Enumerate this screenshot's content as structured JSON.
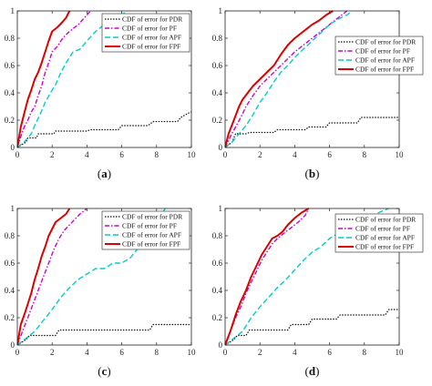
{
  "chart_data": [
    {
      "type": "line",
      "caption": "(a)",
      "xlim": [
        0,
        10
      ],
      "ylim": [
        0,
        1
      ],
      "xticks": [
        "0",
        "2",
        "4",
        "6",
        "8",
        "10"
      ],
      "yticks": [
        "0",
        "0.2",
        "0.4",
        "0.6",
        "0.8",
        "1"
      ],
      "legend_position": "right-middle",
      "series": [
        {
          "name": "CDF of error for PDR",
          "color": "#111111",
          "dash": "dotted",
          "x": [
            0,
            0.5,
            0.6,
            1.1,
            1.2,
            2.1,
            2.2,
            4.0,
            4.2,
            5.8,
            6.0,
            7.5,
            7.8,
            9.2,
            9.4,
            9.8,
            10
          ],
          "y": [
            0,
            0.04,
            0.07,
            0.07,
            0.1,
            0.1,
            0.12,
            0.12,
            0.13,
            0.13,
            0.16,
            0.16,
            0.19,
            0.19,
            0.22,
            0.25,
            0.26
          ]
        },
        {
          "name": "CDF of error for PF",
          "color": "#cc00cc",
          "dash": "dashdot",
          "x": [
            0,
            0.2,
            0.4,
            0.6,
            0.8,
            1.0,
            1.2,
            1.4,
            1.6,
            1.8,
            2.0,
            2.3,
            2.6,
            3.0,
            3.5,
            4.0,
            4.2
          ],
          "y": [
            0,
            0.08,
            0.15,
            0.2,
            0.26,
            0.3,
            0.38,
            0.45,
            0.55,
            0.62,
            0.7,
            0.74,
            0.8,
            0.85,
            0.9,
            0.97,
            1.0
          ]
        },
        {
          "name": "CDF of error for APF",
          "color": "#00cccc",
          "dash": "dashed",
          "x": [
            0,
            0.4,
            0.8,
            1.0,
            1.3,
            1.6,
            1.9,
            2.2,
            2.5,
            2.8,
            3.2,
            3.6,
            4.0,
            4.5,
            5.0,
            5.5,
            6.0,
            6.3
          ],
          "y": [
            0,
            0.04,
            0.1,
            0.16,
            0.24,
            0.33,
            0.4,
            0.46,
            0.55,
            0.62,
            0.7,
            0.72,
            0.78,
            0.85,
            0.9,
            0.93,
            0.97,
            1.0
          ]
        },
        {
          "name": "CDF of error for FPF",
          "color": "#dd0000",
          "dash": "solid",
          "x": [
            0,
            0.2,
            0.4,
            0.6,
            0.8,
            1.0,
            1.2,
            1.4,
            1.6,
            1.8,
            2.0,
            2.3,
            2.6,
            2.8,
            3.0
          ],
          "y": [
            0,
            0.15,
            0.25,
            0.35,
            0.42,
            0.5,
            0.55,
            0.62,
            0.7,
            0.78,
            0.85,
            0.88,
            0.92,
            0.95,
            1.0
          ]
        }
      ]
    },
    {
      "type": "line",
      "caption": "(b)",
      "xlim": [
        0,
        10
      ],
      "ylim": [
        0,
        1
      ],
      "xticks": [
        "0",
        "2",
        "4",
        "6",
        "8",
        "10"
      ],
      "yticks": [
        "0",
        "0.2",
        "0.4",
        "0.6",
        "0.8",
        "1"
      ],
      "legend_position": "right-middle",
      "series": [
        {
          "name": "CDF of error for PDR",
          "color": "#111111",
          "dash": "dotted",
          "x": [
            0,
            0.4,
            0.6,
            1.2,
            1.4,
            2.8,
            3.0,
            4.6,
            4.8,
            5.8,
            6.0,
            7.6,
            7.8,
            10
          ],
          "y": [
            0,
            0.04,
            0.1,
            0.1,
            0.11,
            0.11,
            0.13,
            0.13,
            0.15,
            0.15,
            0.18,
            0.18,
            0.22,
            0.22
          ]
        },
        {
          "name": "CDF of error for PF",
          "color": "#cc00cc",
          "dash": "dashdot",
          "x": [
            0,
            0.3,
            0.6,
            0.9,
            1.2,
            1.6,
            2.0,
            2.4,
            2.8,
            3.2,
            3.6,
            4.0,
            4.5,
            5.0,
            5.5,
            6.0,
            6.5,
            7.0
          ],
          "y": [
            0,
            0.08,
            0.15,
            0.22,
            0.3,
            0.38,
            0.45,
            0.5,
            0.55,
            0.6,
            0.65,
            0.7,
            0.75,
            0.8,
            0.85,
            0.9,
            0.95,
            1.0
          ]
        },
        {
          "name": "CDF of error for APF",
          "color": "#00cccc",
          "dash": "dashed",
          "x": [
            0,
            0.4,
            0.8,
            1.2,
            1.6,
            2.0,
            2.4,
            2.8,
            3.2,
            3.6,
            4.0,
            4.5,
            5.0,
            5.5,
            6.0,
            6.5,
            7.0,
            7.3
          ],
          "y": [
            0,
            0.04,
            0.1,
            0.16,
            0.24,
            0.33,
            0.4,
            0.48,
            0.55,
            0.6,
            0.66,
            0.72,
            0.78,
            0.84,
            0.9,
            0.94,
            0.97,
            1.0
          ]
        },
        {
          "name": "CDF of error for FPF",
          "color": "#dd0000",
          "dash": "solid",
          "x": [
            0,
            0.2,
            0.5,
            0.8,
            1.0,
            1.3,
            1.6,
            2.0,
            2.4,
            2.8,
            3.2,
            3.6,
            4.0,
            4.5,
            5.0,
            5.4,
            5.8,
            6.2
          ],
          "y": [
            0,
            0.1,
            0.2,
            0.3,
            0.35,
            0.4,
            0.45,
            0.5,
            0.55,
            0.6,
            0.68,
            0.75,
            0.8,
            0.85,
            0.9,
            0.93,
            0.97,
            1.0
          ]
        }
      ]
    },
    {
      "type": "line",
      "caption": "(c)",
      "xlim": [
        0,
        10
      ],
      "ylim": [
        0,
        1
      ],
      "xticks": [
        "0",
        "2",
        "4",
        "6",
        "8",
        "10"
      ],
      "yticks": [
        "0",
        "0.2",
        "0.4",
        "0.6",
        "0.8",
        "1"
      ],
      "legend_position": "right-middle",
      "series": [
        {
          "name": "CDF of error for PDR",
          "color": "#111111",
          "dash": "dotted",
          "x": [
            0,
            0.5,
            0.7,
            2.2,
            2.4,
            7.6,
            7.8,
            10
          ],
          "y": [
            0,
            0.04,
            0.07,
            0.07,
            0.11,
            0.11,
            0.15,
            0.15
          ]
        },
        {
          "name": "CDF of error for PF",
          "color": "#cc00cc",
          "dash": "dashdot",
          "x": [
            0,
            0.3,
            0.6,
            0.9,
            1.2,
            1.5,
            1.8,
            2.1,
            2.4,
            2.7,
            3.0,
            3.3,
            3.6,
            4.0
          ],
          "y": [
            0,
            0.1,
            0.2,
            0.3,
            0.4,
            0.5,
            0.6,
            0.7,
            0.78,
            0.84,
            0.88,
            0.92,
            0.96,
            1.0
          ]
        },
        {
          "name": "CDF of error for APF",
          "color": "#00cccc",
          "dash": "dashed",
          "x": [
            0,
            0.5,
            1.0,
            1.5,
            2.0,
            2.5,
            3.0,
            3.5,
            4.0,
            4.5,
            5.0,
            5.5,
            6.0,
            6.5,
            7.0,
            7.5,
            8.0,
            8.5
          ],
          "y": [
            0,
            0.05,
            0.1,
            0.18,
            0.26,
            0.35,
            0.42,
            0.48,
            0.52,
            0.56,
            0.56,
            0.6,
            0.6,
            0.64,
            0.72,
            0.8,
            0.9,
            1.0
          ]
        },
        {
          "name": "CDF of error for FPF",
          "color": "#dd0000",
          "dash": "solid",
          "x": [
            0,
            0.2,
            0.4,
            0.6,
            0.8,
            1.0,
            1.2,
            1.4,
            1.6,
            1.8,
            2.0,
            2.2,
            2.5,
            2.8,
            3.0
          ],
          "y": [
            0,
            0.15,
            0.22,
            0.3,
            0.38,
            0.48,
            0.56,
            0.65,
            0.72,
            0.8,
            0.85,
            0.9,
            0.93,
            0.96,
            1.0
          ]
        }
      ]
    },
    {
      "type": "line",
      "caption": "(d)",
      "xlim": [
        0,
        10
      ],
      "ylim": [
        0,
        1
      ],
      "xticks": [
        "0",
        "2",
        "4",
        "6",
        "8",
        "10"
      ],
      "yticks": [
        "0",
        "0.2",
        "0.4",
        "0.6",
        "0.8",
        "1"
      ],
      "legend_position": "top-right",
      "series": [
        {
          "name": "CDF of error for PDR",
          "color": "#111111",
          "dash": "dotted",
          "x": [
            0,
            0.5,
            0.7,
            1.2,
            1.4,
            3.6,
            3.8,
            4.8,
            5.0,
            6.4,
            6.6,
            9.2,
            9.4,
            10
          ],
          "y": [
            0,
            0.04,
            0.07,
            0.07,
            0.11,
            0.11,
            0.15,
            0.15,
            0.19,
            0.19,
            0.22,
            0.22,
            0.26,
            0.26
          ]
        },
        {
          "name": "CDF of error for PF",
          "color": "#cc00cc",
          "dash": "dashdot",
          "x": [
            0,
            0.3,
            0.6,
            0.9,
            1.2,
            1.5,
            1.8,
            2.1,
            2.4,
            2.7,
            3.0,
            3.4,
            3.8,
            4.2,
            4.6,
            4.8
          ],
          "y": [
            0,
            0.1,
            0.2,
            0.28,
            0.38,
            0.46,
            0.54,
            0.62,
            0.68,
            0.74,
            0.78,
            0.82,
            0.86,
            0.9,
            0.95,
            1.0
          ]
        },
        {
          "name": "CDF of error for APF",
          "color": "#00cccc",
          "dash": "dashed",
          "x": [
            0,
            0.5,
            1.0,
            1.5,
            2.0,
            2.5,
            3.0,
            3.5,
            4.0,
            4.5,
            5.0,
            5.5,
            6.0,
            6.5,
            7.0,
            7.5,
            8.0,
            8.5,
            9.0,
            9.4
          ],
          "y": [
            0,
            0.05,
            0.1,
            0.2,
            0.28,
            0.35,
            0.42,
            0.48,
            0.55,
            0.62,
            0.68,
            0.72,
            0.78,
            0.82,
            0.86,
            0.9,
            0.93,
            0.95,
            0.98,
            1.0
          ]
        },
        {
          "name": "CDF of error for FPF",
          "color": "#dd0000",
          "dash": "solid",
          "x": [
            0,
            0.3,
            0.6,
            0.9,
            1.2,
            1.5,
            1.8,
            2.1,
            2.4,
            2.7,
            3.0,
            3.3,
            3.6,
            4.0,
            4.4,
            4.8
          ],
          "y": [
            0,
            0.1,
            0.22,
            0.32,
            0.4,
            0.5,
            0.58,
            0.66,
            0.72,
            0.78,
            0.8,
            0.83,
            0.88,
            0.93,
            0.97,
            1.0
          ]
        }
      ]
    }
  ]
}
